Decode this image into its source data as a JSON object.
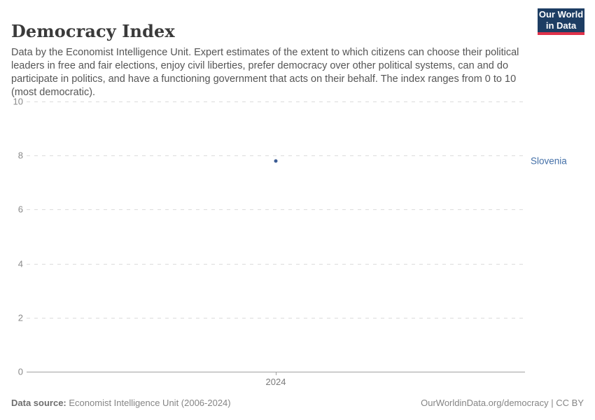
{
  "header": {
    "title": "Democracy Index",
    "subtitle": "Data by the Economist Intelligence Unit. Expert estimates of the extent to which citizens can choose their political leaders in free and fair elections, enjoy civil liberties, prefer democracy over other political systems, can and do participate in politics, and have a functioning government that acts on their behalf. The index ranges from 0 to 10 (most democratic).",
    "logo": {
      "line1": "Our World",
      "line2": "in Data",
      "bg_color": "#1d3d63",
      "accent_color": "#e0324a"
    }
  },
  "chart_data": {
    "type": "scatter",
    "title": "Democracy Index",
    "series": [
      {
        "name": "Slovenia",
        "color": "#3b5c94",
        "label_color": "#4470a8",
        "points": [
          {
            "x": 2024,
            "y": 7.8
          }
        ]
      }
    ],
    "x_ticks": [
      "2024"
    ],
    "y_ticks": [
      0,
      2,
      4,
      6,
      8,
      10
    ],
    "ylim": [
      0,
      10
    ],
    "grid": "horizontal-dashed",
    "gridline_color": "#dcdcdc",
    "axis_color": "#a1a1a1",
    "tick_label_color": "#8a8a8a",
    "legend_position": "right-of-point"
  },
  "footer": {
    "source_label": "Data source:",
    "source_text": "Economist Intelligence Unit (2006-2024)",
    "credit": "OurWorldinData.org/democracy | CC BY"
  }
}
